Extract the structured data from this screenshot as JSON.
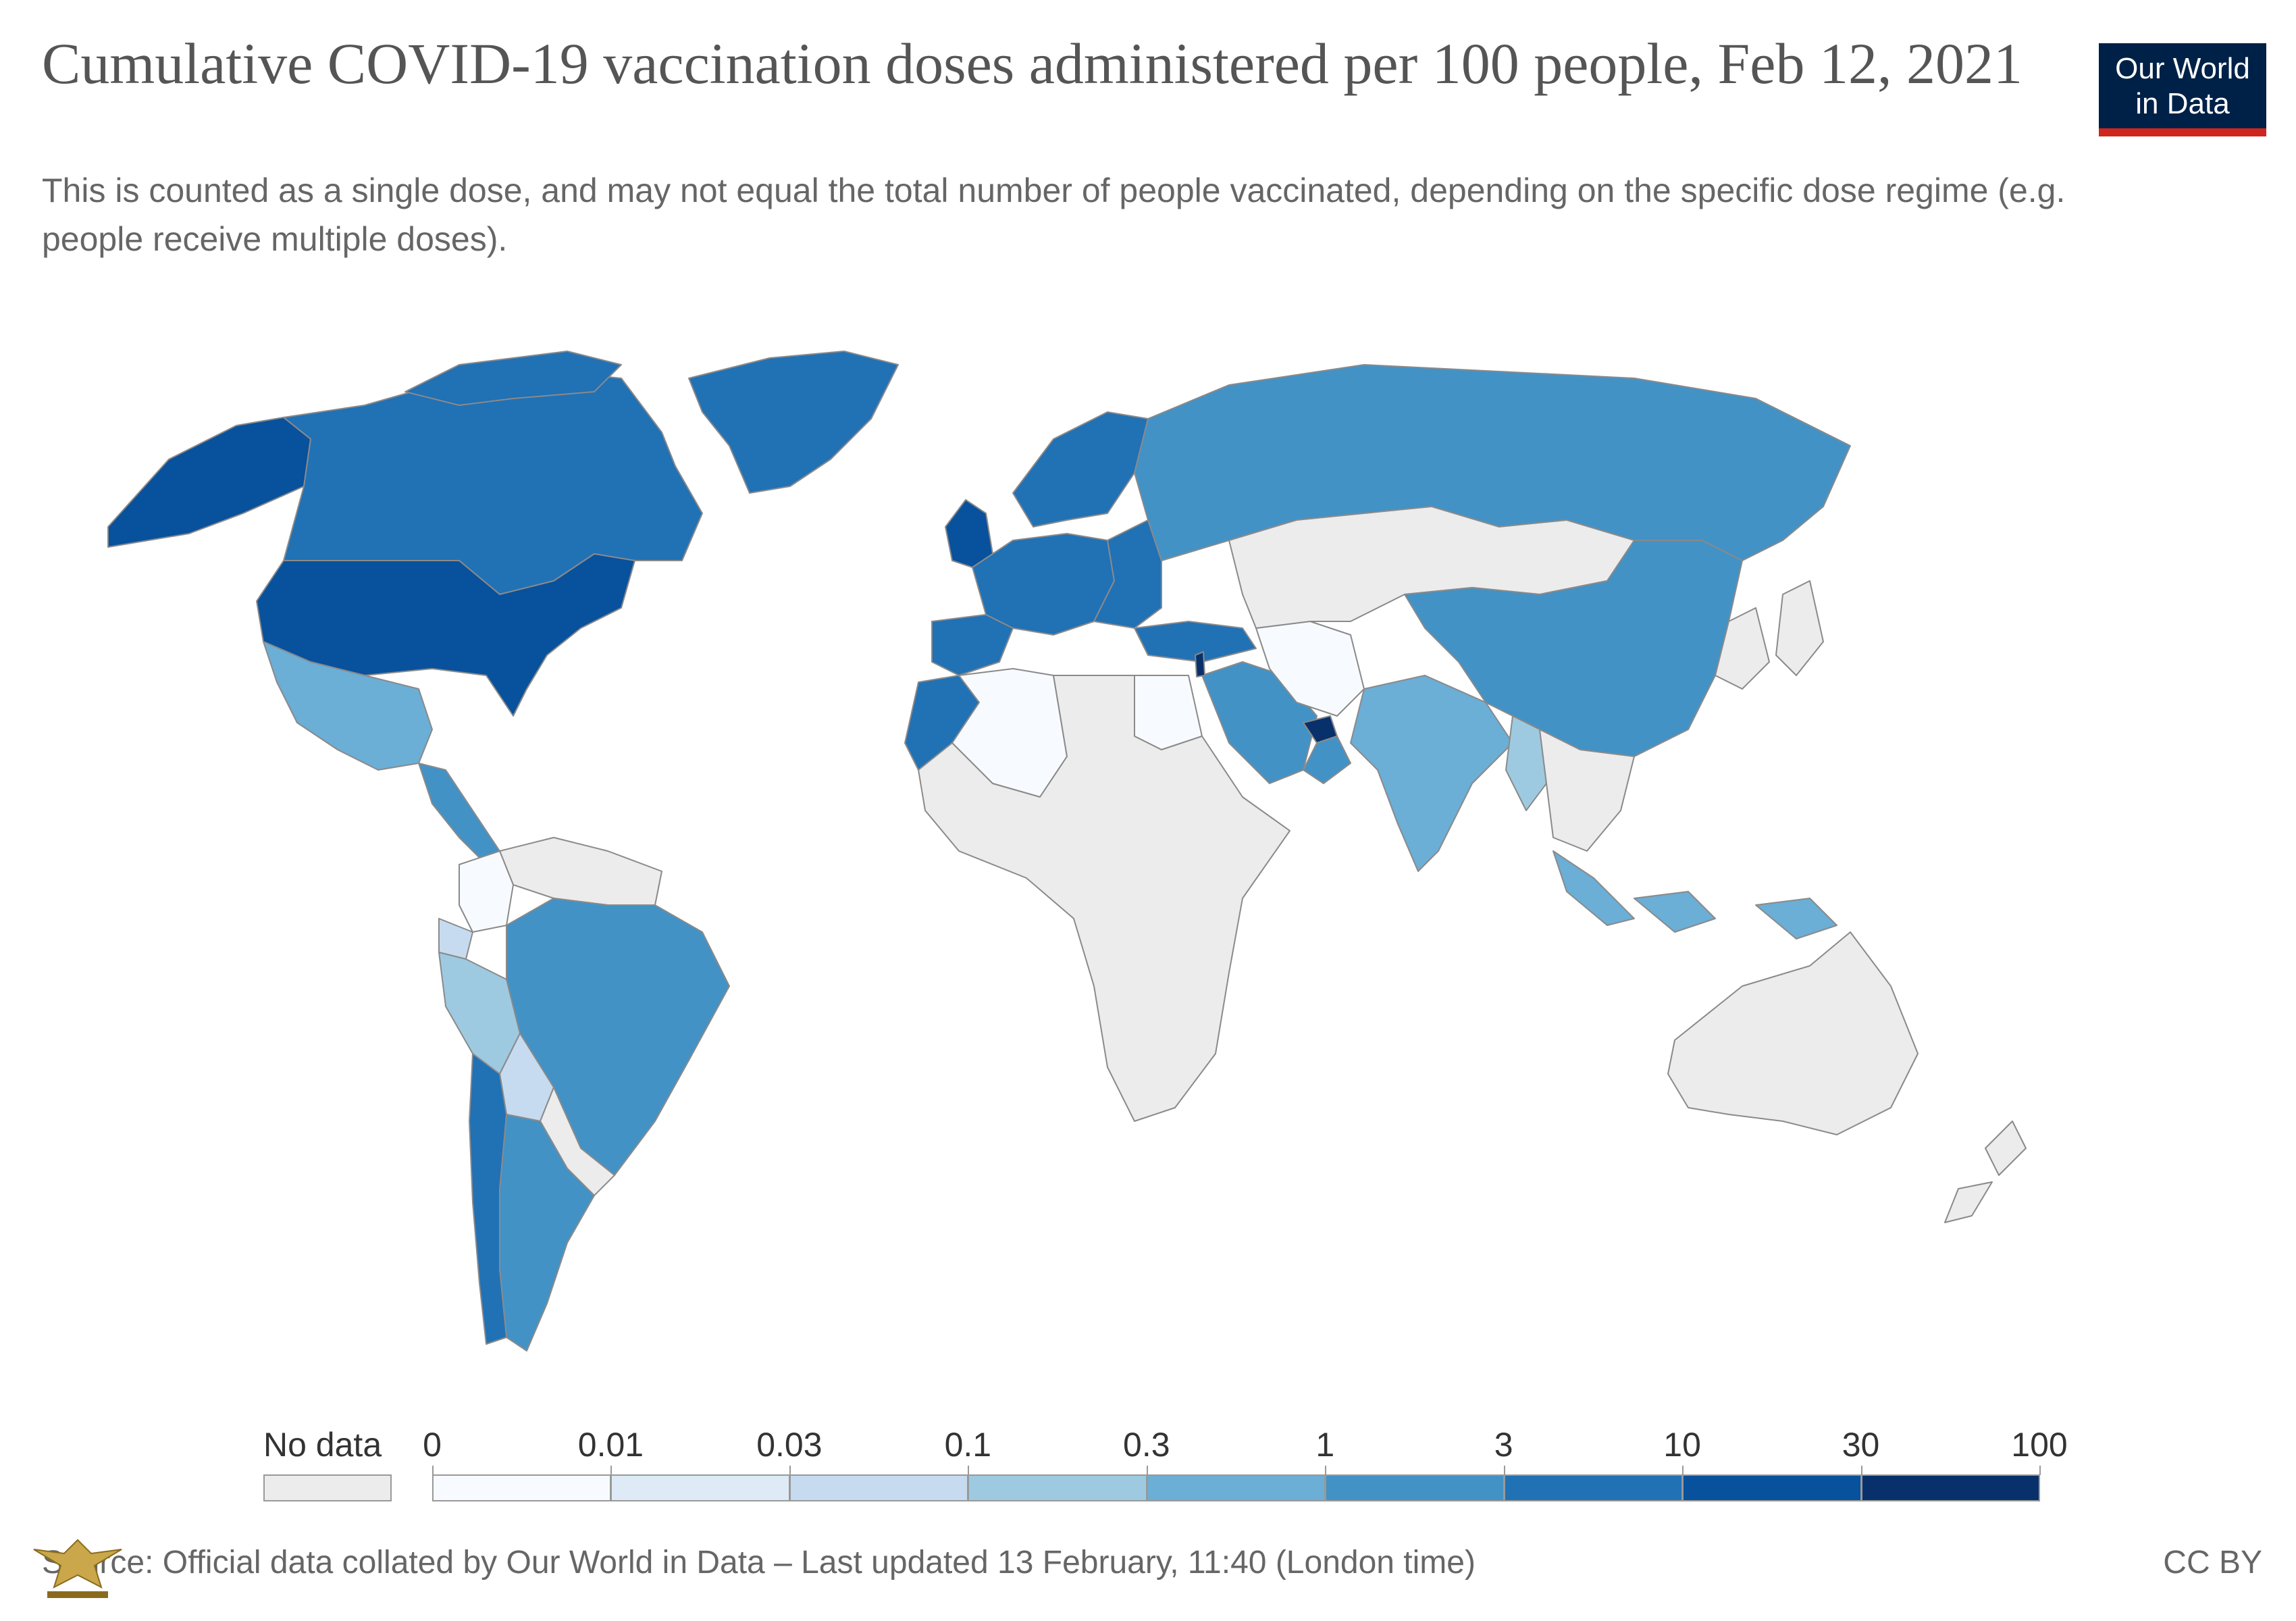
{
  "header": {
    "title": "Cumulative COVID-19 vaccination doses administered per 100 people, Feb 12, 2021",
    "subtitle": "This is counted as a single dose, and may not equal the total number of people vaccinated, depending on the specific dose regime (e.g. people receive multiple doses).",
    "logo_line1": "Our World",
    "logo_line2": "in Data"
  },
  "colors": {
    "no_data": "#ececec",
    "bins": [
      "#f7fbff",
      "#deebf7",
      "#c6dbef",
      "#9ecae1",
      "#6baed6",
      "#4292c6",
      "#2171b5",
      "#08519c",
      "#08306b"
    ],
    "border": "#8a8a8a",
    "logo_bg": "#002147",
    "logo_accent": "#ce261e"
  },
  "legend": {
    "no_data_label": "No data",
    "breaks": [
      "0",
      "0.01",
      "0.03",
      "0.1",
      "0.3",
      "1",
      "3",
      "10",
      "30",
      "100"
    ]
  },
  "chart_data": {
    "type": "choropleth",
    "metric": "Cumulative COVID-19 vaccination doses administered per 100 people",
    "date": "Feb 12, 2021",
    "bins": [
      0,
      0.01,
      0.03,
      0.1,
      0.3,
      1,
      3,
      10,
      30,
      100
    ],
    "regions": [
      {
        "id": "canada",
        "bin": 6
      },
      {
        "id": "alaska",
        "bin": 7
      },
      {
        "id": "usa",
        "bin": 7
      },
      {
        "id": "mexico",
        "bin": 4
      },
      {
        "id": "central-america",
        "bin": 5
      },
      {
        "id": "greenland",
        "bin": 6
      },
      {
        "id": "arctic-islands",
        "bin": 6
      },
      {
        "id": "brazil",
        "bin": 5
      },
      {
        "id": "argentina",
        "bin": 5
      },
      {
        "id": "chile",
        "bin": 6
      },
      {
        "id": "peru",
        "bin": 3
      },
      {
        "id": "bolivia",
        "bin": 2
      },
      {
        "id": "colombia",
        "bin": 0
      },
      {
        "id": "ecuador",
        "bin": 2
      },
      {
        "id": "venezuela-guianas",
        "bin": -1
      },
      {
        "id": "paraguay-uruguay",
        "bin": -1
      },
      {
        "id": "uk",
        "bin": 7
      },
      {
        "id": "scandinavia",
        "bin": 6
      },
      {
        "id": "western-europe",
        "bin": 6
      },
      {
        "id": "iberia",
        "bin": 6
      },
      {
        "id": "eastern-europe",
        "bin": 6
      },
      {
        "id": "russia",
        "bin": 5
      },
      {
        "id": "turkey",
        "bin": 6
      },
      {
        "id": "morocco",
        "bin": 6
      },
      {
        "id": "algeria",
        "bin": 0
      },
      {
        "id": "egypt",
        "bin": 0
      },
      {
        "id": "rest-of-africa",
        "bin": -1
      },
      {
        "id": "saudi-arabia",
        "bin": 5
      },
      {
        "id": "uae",
        "bin": 8
      },
      {
        "id": "oman",
        "bin": 5
      },
      {
        "id": "israel",
        "bin": 8
      },
      {
        "id": "iran",
        "bin": 0
      },
      {
        "id": "india",
        "bin": 4
      },
      {
        "id": "china",
        "bin": 5
      },
      {
        "id": "myanmar",
        "bin": 3
      },
      {
        "id": "indonesia",
        "bin": 4
      },
      {
        "id": "kazakhstan-mongolia",
        "bin": -1
      },
      {
        "id": "southeast-asia",
        "bin": -1
      },
      {
        "id": "japan-korea",
        "bin": -1
      },
      {
        "id": "australia",
        "bin": -1
      },
      {
        "id": "new-zealand",
        "bin": -1
      }
    ]
  },
  "footer": {
    "source": "Source: Official data collated by Our World in Data – Last updated 13 February, 11:40 (London time)",
    "license": "CC BY"
  }
}
